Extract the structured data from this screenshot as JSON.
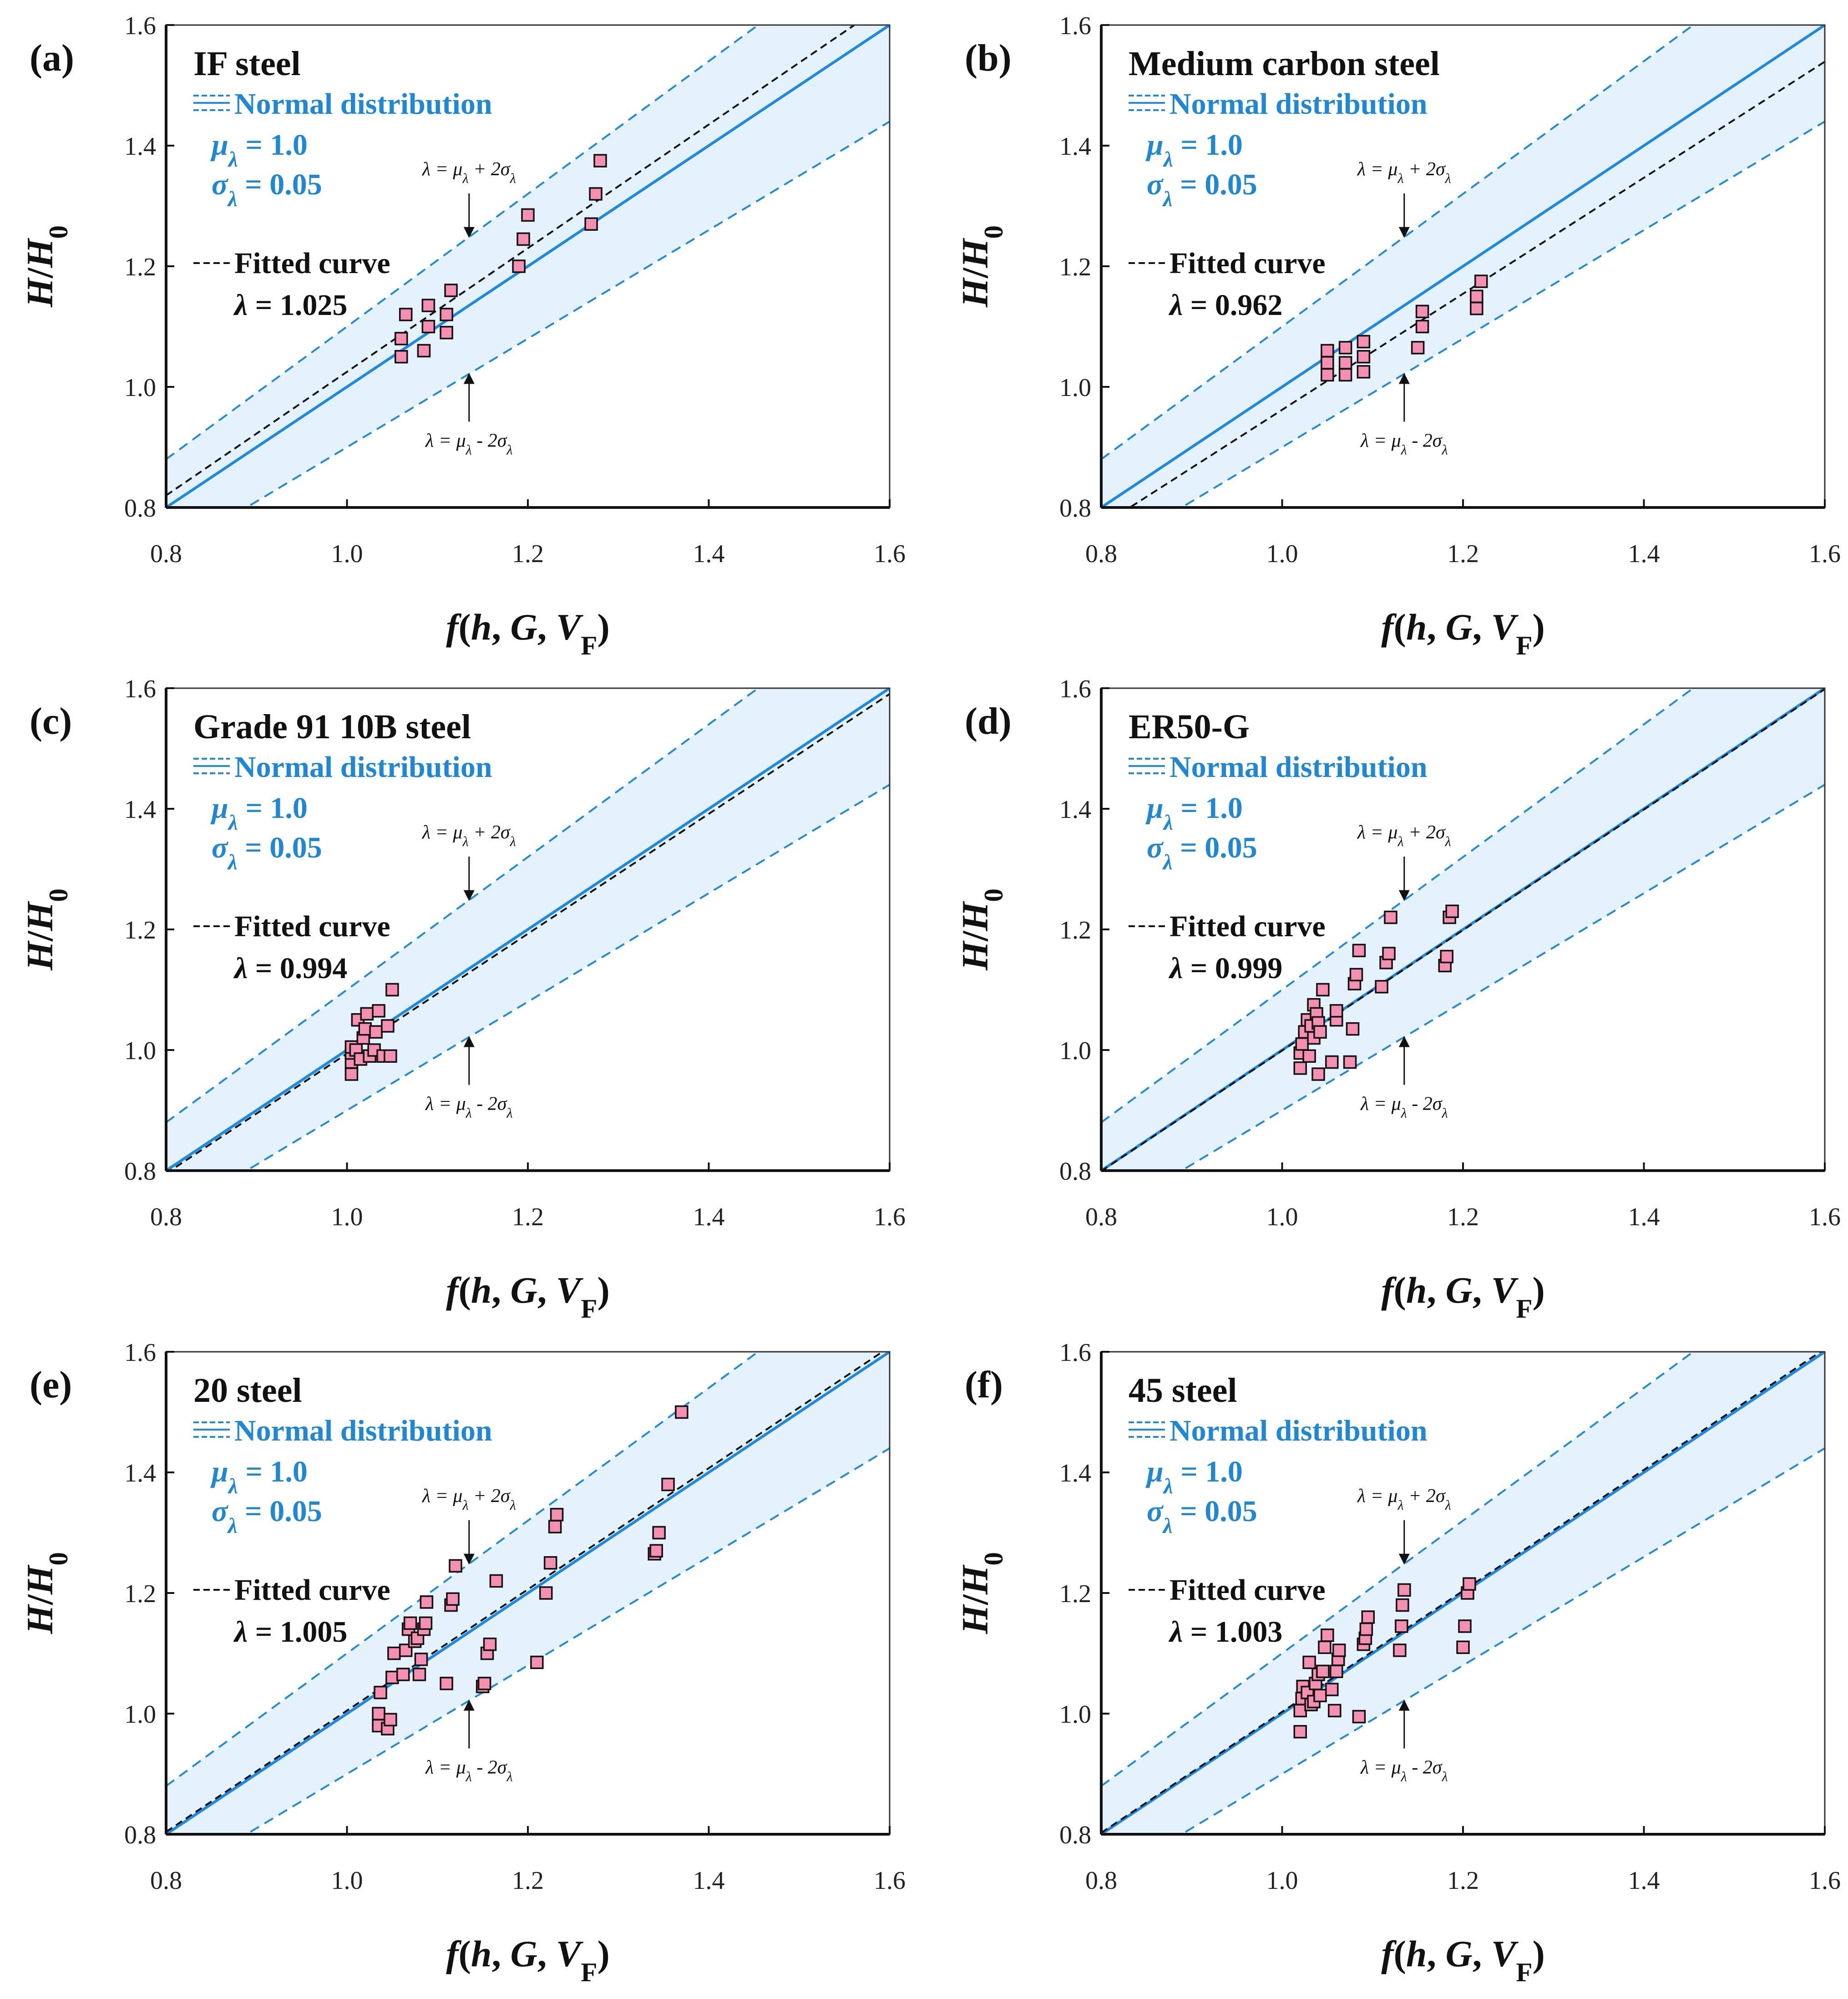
{
  "colors": {
    "band_fill": "#e3f2fd",
    "band_line": "#1e88e5",
    "mean_line": "#1e88e5",
    "fit_line": "#111111",
    "marker_fill": "#f48fb1",
    "marker_edge": "#111111",
    "blue_text": "#1e88d6"
  },
  "icons": {
    "legend_band": "dashed-band-legend-icon",
    "legend_fit": "dashed-line-legend-icon",
    "arrow": "arrow-icon"
  },
  "chart_data": [
    {
      "type": "scatter",
      "panel_label": "(a)",
      "title": "IF steel",
      "legend": {
        "dist_label": "Normal distribution",
        "mu_label": "μλ = 1.0",
        "sigma_label": "σλ = 0.05",
        "fit_label": "Fitted curve",
        "lambda_label": "λ = 1.025"
      },
      "annotations": {
        "upper": "λ = μλ + 2σλ",
        "lower": "λ = μλ - 2σλ"
      },
      "xlabel": "f(h, G, VF)",
      "ylabel": "H/H0",
      "xlim": [
        0.8,
        1.6
      ],
      "ylim": [
        0.8,
        1.6
      ],
      "xticks": [
        "0.8",
        "1.0",
        "1.2",
        "1.4",
        "1.6"
      ],
      "yticks": [
        "0.8",
        "1.0",
        "1.2",
        "1.4",
        "1.6"
      ],
      "mu": 1.0,
      "sigma": 0.05,
      "fit_lambda": 1.025,
      "points": [
        [
          1.06,
          1.05
        ],
        [
          1.06,
          1.08
        ],
        [
          1.065,
          1.12
        ],
        [
          1.085,
          1.06
        ],
        [
          1.09,
          1.1
        ],
        [
          1.09,
          1.135
        ],
        [
          1.11,
          1.09
        ],
        [
          1.11,
          1.12
        ],
        [
          1.115,
          1.16
        ],
        [
          1.19,
          1.2
        ],
        [
          1.195,
          1.245
        ],
        [
          1.2,
          1.285
        ],
        [
          1.27,
          1.27
        ],
        [
          1.275,
          1.32
        ],
        [
          1.28,
          1.375
        ]
      ]
    },
    {
      "type": "scatter",
      "panel_label": "(b)",
      "title": "Medium carbon steel",
      "legend": {
        "dist_label": "Normal distribution",
        "mu_label": "μλ = 1.0",
        "sigma_label": "σλ = 0.05",
        "fit_label": "Fitted curve",
        "lambda_label": "λ = 0.962"
      },
      "annotations": {
        "upper": "λ = μλ + 2σλ",
        "lower": "λ = μλ - 2σλ"
      },
      "xlabel": "f(h, G, VF)",
      "ylabel": "H/H0",
      "xlim": [
        0.8,
        1.6
      ],
      "ylim": [
        0.8,
        1.6
      ],
      "xticks": [
        "0.8",
        "1.0",
        "1.2",
        "1.4",
        "1.6"
      ],
      "yticks": [
        "0.8",
        "1.0",
        "1.2",
        "1.4",
        "1.6"
      ],
      "mu": 1.0,
      "sigma": 0.05,
      "fit_lambda": 0.962,
      "points": [
        [
          1.05,
          1.02
        ],
        [
          1.05,
          1.04
        ],
        [
          1.05,
          1.06
        ],
        [
          1.07,
          1.02
        ],
        [
          1.07,
          1.04
        ],
        [
          1.07,
          1.065
        ],
        [
          1.09,
          1.025
        ],
        [
          1.09,
          1.05
        ],
        [
          1.09,
          1.075
        ],
        [
          1.15,
          1.065
        ],
        [
          1.155,
          1.1
        ],
        [
          1.155,
          1.125
        ],
        [
          1.215,
          1.13
        ],
        [
          1.215,
          1.15
        ],
        [
          1.22,
          1.175
        ]
      ]
    },
    {
      "type": "scatter",
      "panel_label": "(c)",
      "title": "Grade 91 10B steel",
      "legend": {
        "dist_label": "Normal distribution",
        "mu_label": "μλ = 1.0",
        "sigma_label": "σλ = 0.05",
        "fit_label": "Fitted curve",
        "lambda_label": "λ = 0.994"
      },
      "annotations": {
        "upper": "λ = μλ + 2σλ",
        "lower": "λ = μλ - 2σλ"
      },
      "xlabel": "f(h, G, VF)",
      "ylabel": "H/H0",
      "xlim": [
        0.8,
        1.6
      ],
      "ylim": [
        0.8,
        1.6
      ],
      "xticks": [
        "0.8",
        "1.0",
        "1.2",
        "1.4",
        "1.6"
      ],
      "yticks": [
        "0.8",
        "1.0",
        "1.2",
        "1.4",
        "1.6"
      ],
      "mu": 1.0,
      "sigma": 0.05,
      "fit_lambda": 0.994,
      "points": [
        [
          1.005,
          0.96
        ],
        [
          1.005,
          0.98
        ],
        [
          1.005,
          0.995
        ],
        [
          1.005,
          1.005
        ],
        [
          1.01,
          1.0
        ],
        [
          1.012,
          1.05
        ],
        [
          1.015,
          0.985
        ],
        [
          1.018,
          1.02
        ],
        [
          1.02,
          1.035
        ],
        [
          1.022,
          1.06
        ],
        [
          1.025,
          0.99
        ],
        [
          1.03,
          1.0
        ],
        [
          1.032,
          1.03
        ],
        [
          1.035,
          1.065
        ],
        [
          1.04,
          0.99
        ],
        [
          1.045,
          1.04
        ],
        [
          1.048,
          0.99
        ],
        [
          1.05,
          1.1
        ]
      ]
    },
    {
      "type": "scatter",
      "panel_label": "(d)",
      "title": "ER50-G",
      "legend": {
        "dist_label": "Normal distribution",
        "mu_label": "μλ = 1.0",
        "sigma_label": "σλ = 0.05",
        "fit_label": "Fitted curve",
        "lambda_label": "λ = 0.999"
      },
      "annotations": {
        "upper": "λ = μλ + 2σλ",
        "lower": "λ = μλ - 2σλ"
      },
      "xlabel": "f(h, G, VF)",
      "ylabel": "H/H0",
      "xlim": [
        0.8,
        1.6
      ],
      "ylim": [
        0.8,
        1.6
      ],
      "xticks": [
        "0.8",
        "1.0",
        "1.2",
        "1.4",
        "1.6"
      ],
      "yticks": [
        "0.8",
        "1.0",
        "1.2",
        "1.4",
        "1.6"
      ],
      "mu": 1.0,
      "sigma": 0.05,
      "fit_lambda": 0.999,
      "points": [
        [
          1.02,
          0.97
        ],
        [
          1.02,
          0.995
        ],
        [
          1.022,
          1.01
        ],
        [
          1.025,
          1.03
        ],
        [
          1.028,
          1.05
        ],
        [
          1.03,
          0.99
        ],
        [
          1.032,
          1.04
        ],
        [
          1.035,
          1.075
        ],
        [
          1.035,
          1.02
        ],
        [
          1.038,
          1.06
        ],
        [
          1.04,
          1.045
        ],
        [
          1.04,
          0.96
        ],
        [
          1.042,
          1.03
        ],
        [
          1.045,
          1.1
        ],
        [
          1.055,
          0.98
        ],
        [
          1.06,
          1.05
        ],
        [
          1.06,
          1.065
        ],
        [
          1.075,
          0.98
        ],
        [
          1.078,
          1.035
        ],
        [
          1.08,
          1.11
        ],
        [
          1.082,
          1.125
        ],
        [
          1.085,
          1.165
        ],
        [
          1.11,
          1.105
        ],
        [
          1.115,
          1.145
        ],
        [
          1.118,
          1.16
        ],
        [
          1.12,
          1.22
        ],
        [
          1.18,
          1.14
        ],
        [
          1.182,
          1.155
        ],
        [
          1.185,
          1.22
        ],
        [
          1.188,
          1.23
        ]
      ]
    },
    {
      "type": "scatter",
      "panel_label": "(e)",
      "title": "20 steel",
      "legend": {
        "dist_label": "Normal distribution",
        "mu_label": "μλ = 1.0",
        "sigma_label": "σλ = 0.05",
        "fit_label": "Fitted curve",
        "lambda_label": "λ = 1.005"
      },
      "annotations": {
        "upper": "λ = μλ + 2σλ",
        "lower": "λ = μλ - 2σλ"
      },
      "xlabel": "f(h, G, VF)",
      "ylabel": "H/H0",
      "xlim": [
        0.8,
        1.6
      ],
      "ylim": [
        0.8,
        1.6
      ],
      "xticks": [
        "0.8",
        "1.0",
        "1.2",
        "1.4",
        "1.6"
      ],
      "yticks": [
        "0.8",
        "1.0",
        "1.2",
        "1.4",
        "1.6"
      ],
      "mu": 1.0,
      "sigma": 0.05,
      "fit_lambda": 1.005,
      "points": [
        [
          1.035,
          0.98
        ],
        [
          1.035,
          1.0
        ],
        [
          1.037,
          1.035
        ],
        [
          1.045,
          0.975
        ],
        [
          1.048,
          0.99
        ],
        [
          1.05,
          1.06
        ],
        [
          1.052,
          1.1
        ],
        [
          1.062,
          1.065
        ],
        [
          1.065,
          1.105
        ],
        [
          1.068,
          1.14
        ],
        [
          1.07,
          1.15
        ],
        [
          1.075,
          1.12
        ],
        [
          1.078,
          1.125
        ],
        [
          1.08,
          1.065
        ],
        [
          1.082,
          1.09
        ],
        [
          1.085,
          1.14
        ],
        [
          1.087,
          1.15
        ],
        [
          1.088,
          1.185
        ],
        [
          1.11,
          1.05
        ],
        [
          1.115,
          1.18
        ],
        [
          1.117,
          1.19
        ],
        [
          1.12,
          1.245
        ],
        [
          1.15,
          1.045
        ],
        [
          1.152,
          1.05
        ],
        [
          1.155,
          1.1
        ],
        [
          1.158,
          1.115
        ],
        [
          1.165,
          1.22
        ],
        [
          1.21,
          1.085
        ],
        [
          1.22,
          1.2
        ],
        [
          1.225,
          1.25
        ],
        [
          1.23,
          1.31
        ],
        [
          1.232,
          1.33
        ],
        [
          1.34,
          1.265
        ],
        [
          1.342,
          1.27
        ],
        [
          1.345,
          1.3
        ],
        [
          1.355,
          1.38
        ],
        [
          1.37,
          1.5
        ]
      ]
    },
    {
      "type": "scatter",
      "panel_label": "(f)",
      "title": "45 steel",
      "legend": {
        "dist_label": "Normal distribution",
        "mu_label": "μλ = 1.0",
        "sigma_label": "σλ = 0.05",
        "fit_label": "Fitted curve",
        "lambda_label": "λ = 1.003"
      },
      "annotations": {
        "upper": "λ = μλ + 2σλ",
        "lower": "λ = μλ - 2σλ"
      },
      "xlabel": "f(h, G, VF)",
      "ylabel": "H/H0",
      "xlim": [
        0.8,
        1.6
      ],
      "ylim": [
        0.8,
        1.6
      ],
      "xticks": [
        "0.8",
        "1.0",
        "1.2",
        "1.4",
        "1.6"
      ],
      "yticks": [
        "0.8",
        "1.0",
        "1.2",
        "1.4",
        "1.6"
      ],
      "mu": 1.0,
      "sigma": 0.05,
      "fit_lambda": 1.003,
      "points": [
        [
          1.02,
          0.97
        ],
        [
          1.02,
          1.005
        ],
        [
          1.022,
          1.025
        ],
        [
          1.023,
          1.045
        ],
        [
          1.028,
          1.035
        ],
        [
          1.03,
          1.085
        ],
        [
          1.032,
          1.015
        ],
        [
          1.035,
          1.02
        ],
        [
          1.037,
          1.05
        ],
        [
          1.04,
          1.065
        ],
        [
          1.042,
          1.03
        ],
        [
          1.045,
          1.07
        ],
        [
          1.047,
          1.11
        ],
        [
          1.05,
          1.13
        ],
        [
          1.055,
          1.04
        ],
        [
          1.058,
          1.005
        ],
        [
          1.06,
          1.07
        ],
        [
          1.062,
          1.09
        ],
        [
          1.063,
          1.105
        ],
        [
          1.085,
          0.995
        ],
        [
          1.09,
          1.115
        ],
        [
          1.092,
          1.125
        ],
        [
          1.093,
          1.14
        ],
        [
          1.095,
          1.16
        ],
        [
          1.13,
          1.105
        ],
        [
          1.132,
          1.145
        ],
        [
          1.133,
          1.18
        ],
        [
          1.135,
          1.205
        ],
        [
          1.2,
          1.11
        ],
        [
          1.202,
          1.145
        ],
        [
          1.205,
          1.2
        ],
        [
          1.207,
          1.215
        ]
      ]
    }
  ]
}
